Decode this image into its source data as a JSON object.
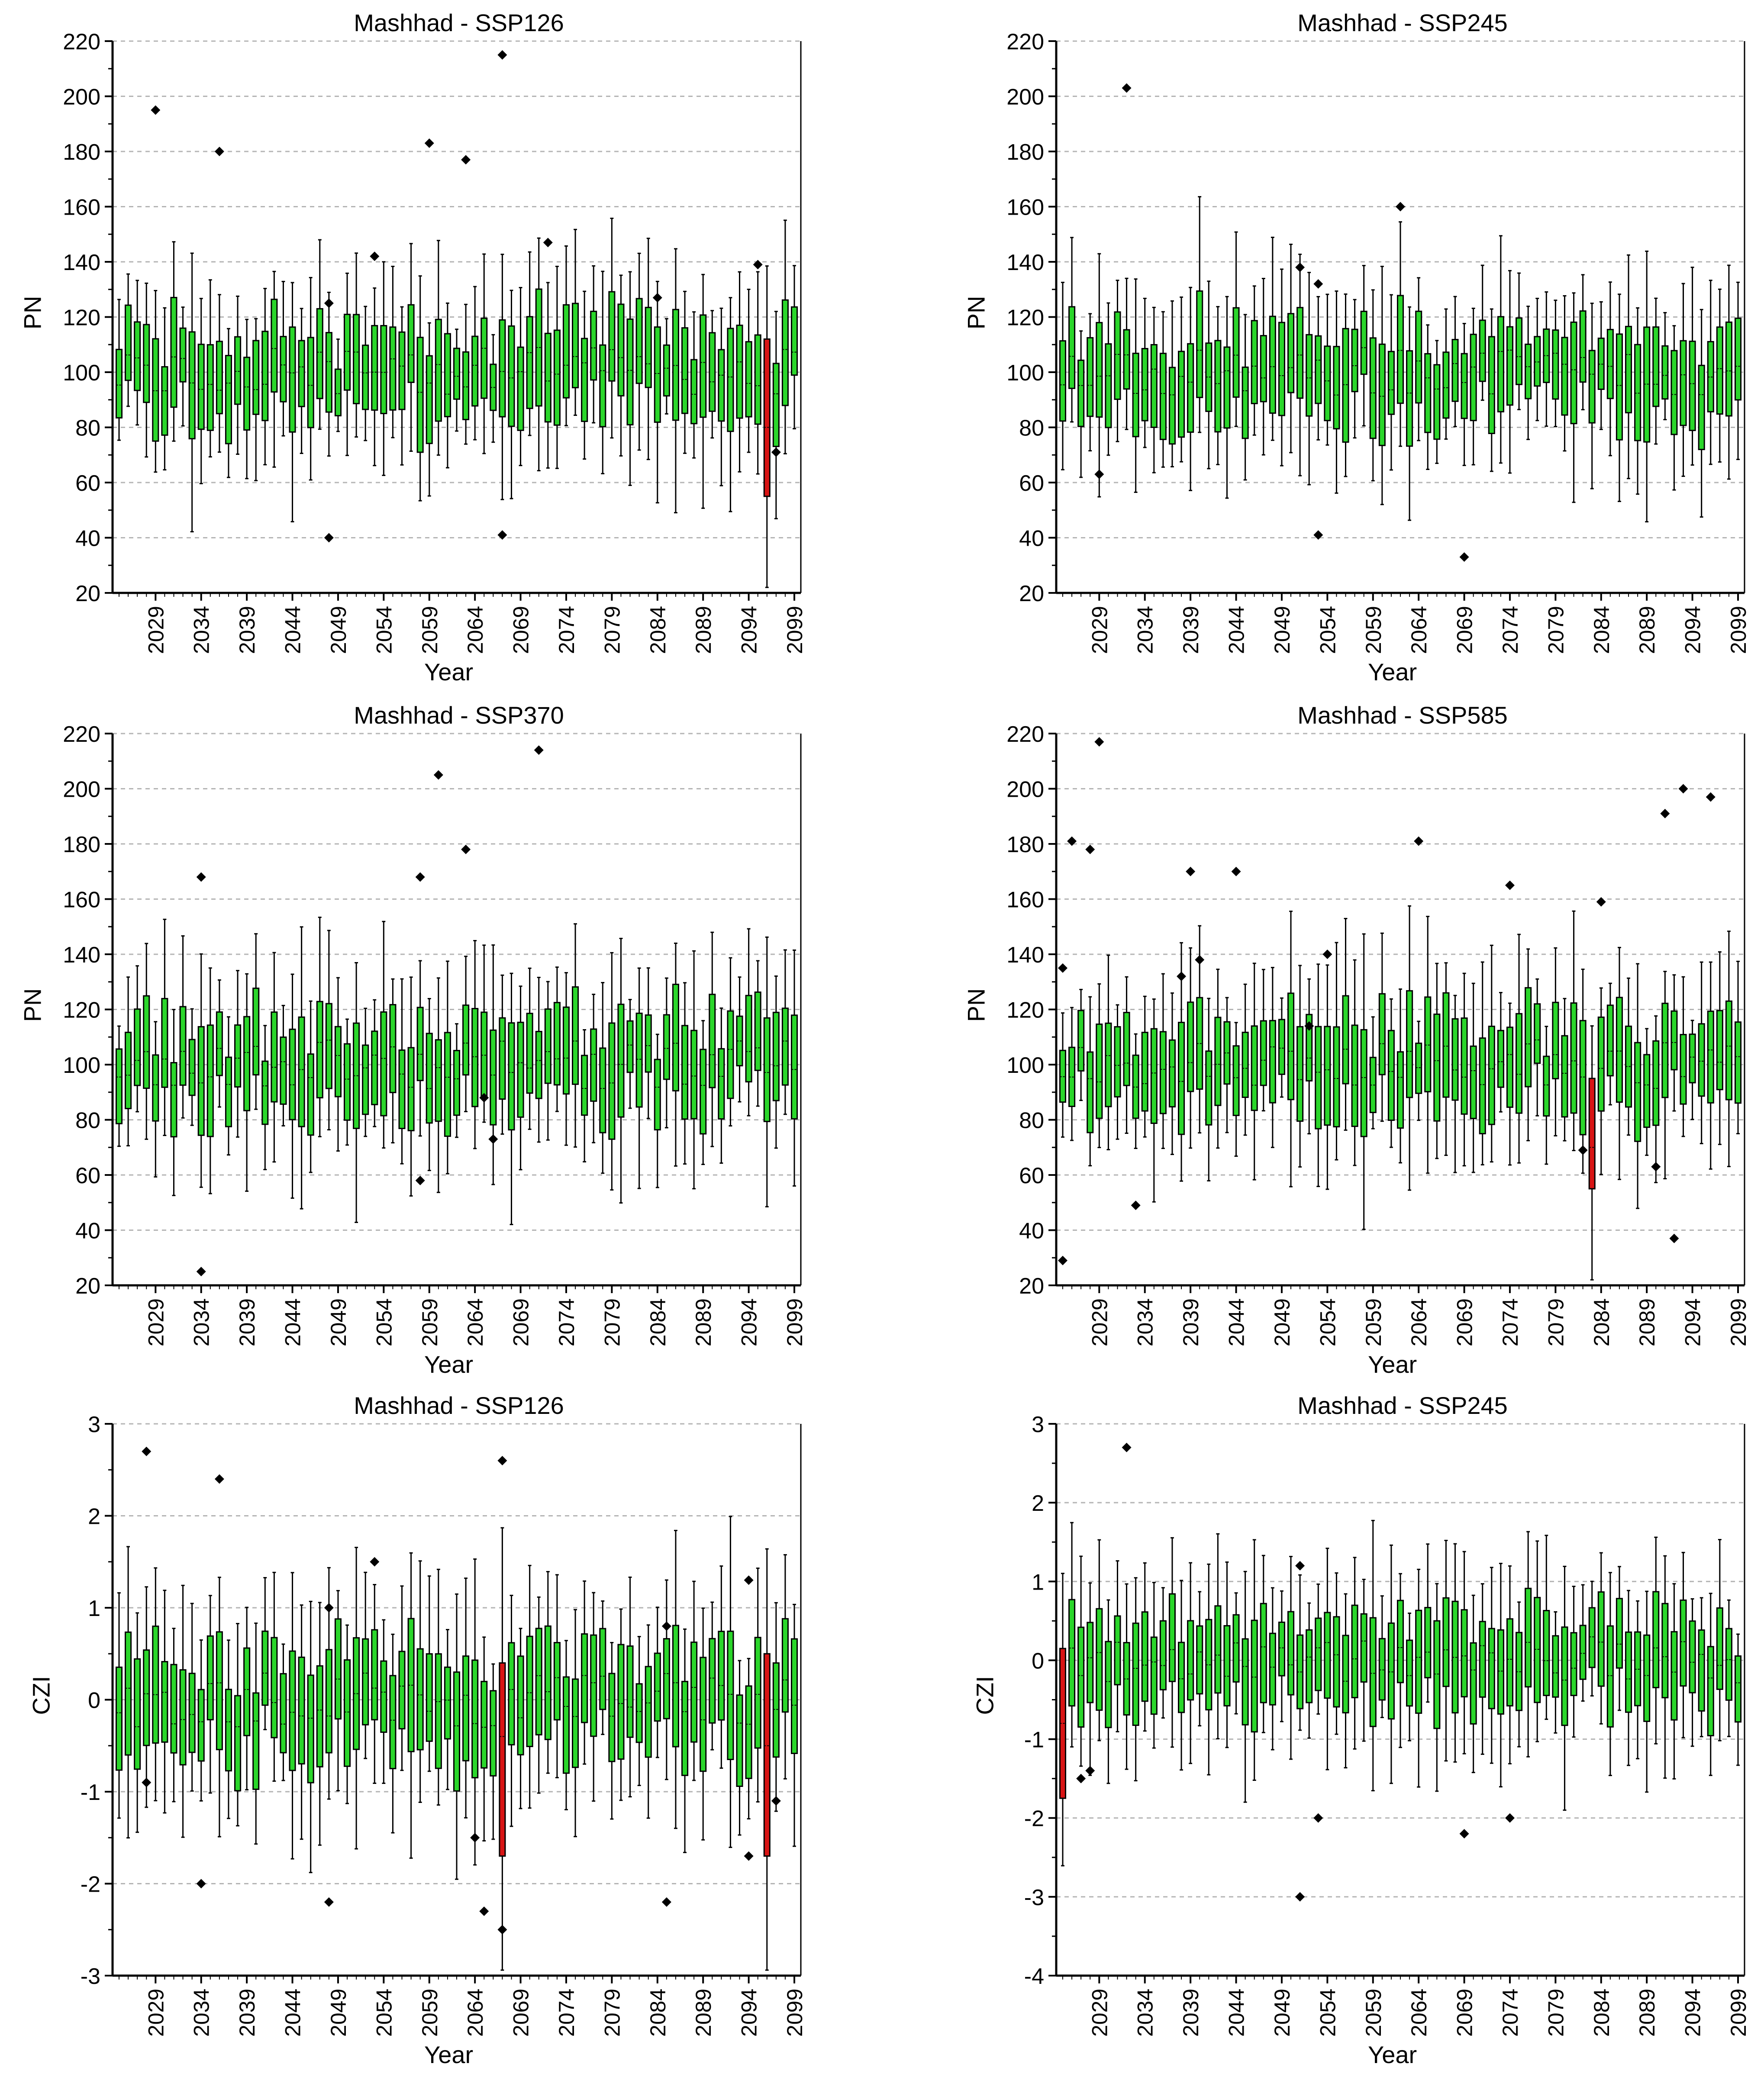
{
  "colors": {
    "box": "#2bd62b",
    "highlight": "#d81515",
    "outline": "#000000",
    "grid": "#b4b4b4"
  },
  "chart_data": [
    {
      "type": "box",
      "title": "Mashhad - SSP126",
      "ylabel": "PN",
      "xlabel": "Year",
      "ylim": [
        20,
        220
      ],
      "yticks": [
        20,
        40,
        60,
        80,
        100,
        120,
        140,
        160,
        180,
        200,
        220
      ],
      "xticks": [
        "2029",
        "2034",
        "2039",
        "2044",
        "2049",
        "2054",
        "2059",
        "2064",
        "2069",
        "2074",
        "2079",
        "2084",
        "2089",
        "2094",
        "2099"
      ],
      "years": [
        2025,
        2099
      ],
      "grid": true,
      "seed": 11,
      "median_level": 100,
      "median_spread": 9,
      "half_box_range": [
        8,
        22
      ],
      "highlight": [
        {
          "year": 2096,
          "lower": 55,
          "upper": 112,
          "median": 80
        }
      ],
      "outliers": [
        [
          2029,
          195
        ],
        [
          2036,
          180
        ],
        [
          2048,
          40
        ],
        [
          2048,
          125
        ],
        [
          2053,
          142
        ],
        [
          2059,
          183
        ],
        [
          2063,
          177
        ],
        [
          2067,
          215
        ],
        [
          2067,
          41
        ],
        [
          2072,
          147
        ],
        [
          2084,
          127
        ],
        [
          2095,
          139
        ],
        [
          2097,
          71
        ]
      ]
    },
    {
      "type": "box",
      "title": "Mashhad - SSP245",
      "ylabel": "PN",
      "xlabel": "Year",
      "ylim": [
        20,
        220
      ],
      "yticks": [
        20,
        40,
        60,
        80,
        100,
        120,
        140,
        160,
        180,
        200,
        220
      ],
      "xticks": [
        "2029",
        "2034",
        "2039",
        "2044",
        "2049",
        "2054",
        "2059",
        "2064",
        "2069",
        "2074",
        "2079",
        "2084",
        "2089",
        "2094",
        "2099"
      ],
      "years": [
        2025,
        2099
      ],
      "grid": true,
      "seed": 23,
      "median_level": 100,
      "median_spread": 9,
      "half_box_range": [
        8,
        22
      ],
      "highlight": [],
      "outliers": [
        [
          2029,
          63
        ],
        [
          2032,
          203
        ],
        [
          2051,
          138
        ],
        [
          2053,
          132
        ],
        [
          2053,
          41
        ],
        [
          2062,
          160
        ],
        [
          2069,
          33
        ]
      ]
    },
    {
      "type": "box",
      "title": "Mashhad - SSP370",
      "ylabel": "PN",
      "xlabel": "Year",
      "ylim": [
        20,
        220
      ],
      "yticks": [
        20,
        40,
        60,
        80,
        100,
        120,
        140,
        160,
        180,
        200,
        220
      ],
      "xticks": [
        "2029",
        "2034",
        "2039",
        "2044",
        "2049",
        "2054",
        "2059",
        "2064",
        "2069",
        "2074",
        "2079",
        "2084",
        "2089",
        "2094",
        "2099"
      ],
      "years": [
        2025,
        2099
      ],
      "grid": true,
      "seed": 37,
      "median_level": 100,
      "median_spread": 9,
      "half_box_range": [
        8,
        22
      ],
      "highlight": [],
      "outliers": [
        [
          2034,
          168
        ],
        [
          2034,
          25
        ],
        [
          2058,
          168
        ],
        [
          2058,
          58
        ],
        [
          2060,
          205
        ],
        [
          2063,
          178
        ],
        [
          2065,
          88
        ],
        [
          2066,
          73
        ],
        [
          2071,
          214
        ]
      ]
    },
    {
      "type": "box",
      "title": "Mashhad - SSP585",
      "ylabel": "PN",
      "xlabel": "Year",
      "ylim": [
        20,
        220
      ],
      "yticks": [
        20,
        40,
        60,
        80,
        100,
        120,
        140,
        160,
        180,
        200,
        220
      ],
      "xticks": [
        "2029",
        "2034",
        "2039",
        "2044",
        "2049",
        "2054",
        "2059",
        "2064",
        "2069",
        "2074",
        "2079",
        "2084",
        "2089",
        "2094",
        "2099"
      ],
      "years": [
        2025,
        2099
      ],
      "grid": true,
      "seed": 53,
      "median_level": 100,
      "median_spread": 9,
      "half_box_range": [
        8,
        22
      ],
      "highlight": [
        {
          "year": 2083,
          "lower": 55,
          "upper": 95,
          "median": 70
        }
      ],
      "outliers": [
        [
          2025,
          135
        ],
        [
          2025,
          29
        ],
        [
          2026,
          181
        ],
        [
          2028,
          178
        ],
        [
          2029,
          217
        ],
        [
          2033,
          49
        ],
        [
          2038,
          132
        ],
        [
          2039,
          170
        ],
        [
          2040,
          138
        ],
        [
          2044,
          170
        ],
        [
          2052,
          114
        ],
        [
          2054,
          140
        ],
        [
          2064,
          181
        ],
        [
          2074,
          165
        ],
        [
          2082,
          69
        ],
        [
          2084,
          159
        ],
        [
          2090,
          63
        ],
        [
          2091,
          191
        ],
        [
          2092,
          37
        ],
        [
          2093,
          200
        ],
        [
          2096,
          197
        ]
      ]
    },
    {
      "type": "box",
      "title": "Mashhad - SSP126",
      "ylabel": "CZI",
      "xlabel": "Year",
      "ylim": [
        -3,
        3
      ],
      "yticks": [
        -3,
        -2,
        -1,
        0,
        1,
        2,
        3
      ],
      "xticks": [
        "2029",
        "2034",
        "2039",
        "2044",
        "2049",
        "2054",
        "2059",
        "2064",
        "2069",
        "2074",
        "2079",
        "2084",
        "2089",
        "2094",
        "2099"
      ],
      "years": [
        2025,
        2099
      ],
      "grid": true,
      "seed": 71,
      "median_level": 0,
      "median_spread": 0.3,
      "half_box_range": [
        0.3,
        0.75
      ],
      "highlight": [
        {
          "year": 2067,
          "lower": -1.7,
          "upper": 0.4,
          "median": -0.4
        },
        {
          "year": 2096,
          "lower": -1.7,
          "upper": 0.5,
          "median": -0.5
        }
      ],
      "outliers": [
        [
          2028,
          2.7
        ],
        [
          2028,
          -0.9
        ],
        [
          2034,
          -2.0
        ],
        [
          2036,
          2.4
        ],
        [
          2048,
          -2.2
        ],
        [
          2048,
          1.0
        ],
        [
          2053,
          1.5
        ],
        [
          2064,
          -1.5
        ],
        [
          2065,
          -2.3
        ],
        [
          2067,
          2.6
        ],
        [
          2067,
          -2.5
        ],
        [
          2085,
          -2.2
        ],
        [
          2085,
          0.8
        ],
        [
          2094,
          1.3
        ],
        [
          2094,
          -1.7
        ],
        [
          2097,
          -1.1
        ]
      ]
    },
    {
      "type": "box",
      "title": "Mashhad - SSP245",
      "ylabel": "CZI",
      "xlabel": "Year",
      "ylim": [
        -4,
        3
      ],
      "yticks": [
        -4,
        -3,
        -2,
        -1,
        0,
        1,
        2,
        3
      ],
      "xticks": [
        "2029",
        "2034",
        "2039",
        "2044",
        "2049",
        "2054",
        "2059",
        "2064",
        "2069",
        "2074",
        "2079",
        "2084",
        "2089",
        "2094",
        "2099"
      ],
      "years": [
        2025,
        2099
      ],
      "grid": true,
      "seed": 89,
      "median_level": 0,
      "median_spread": 0.3,
      "half_box_range": [
        0.3,
        0.75
      ],
      "highlight": [
        {
          "year": 2025,
          "lower": -1.75,
          "upper": 0.15,
          "median": -0.8
        }
      ],
      "outliers": [
        [
          2027,
          -1.5
        ],
        [
          2028,
          -1.4
        ],
        [
          2032,
          2.7
        ],
        [
          2051,
          1.2
        ],
        [
          2051,
          -3.0
        ],
        [
          2053,
          -2.0
        ],
        [
          2069,
          -2.2
        ],
        [
          2074,
          -2.0
        ]
      ]
    }
  ]
}
